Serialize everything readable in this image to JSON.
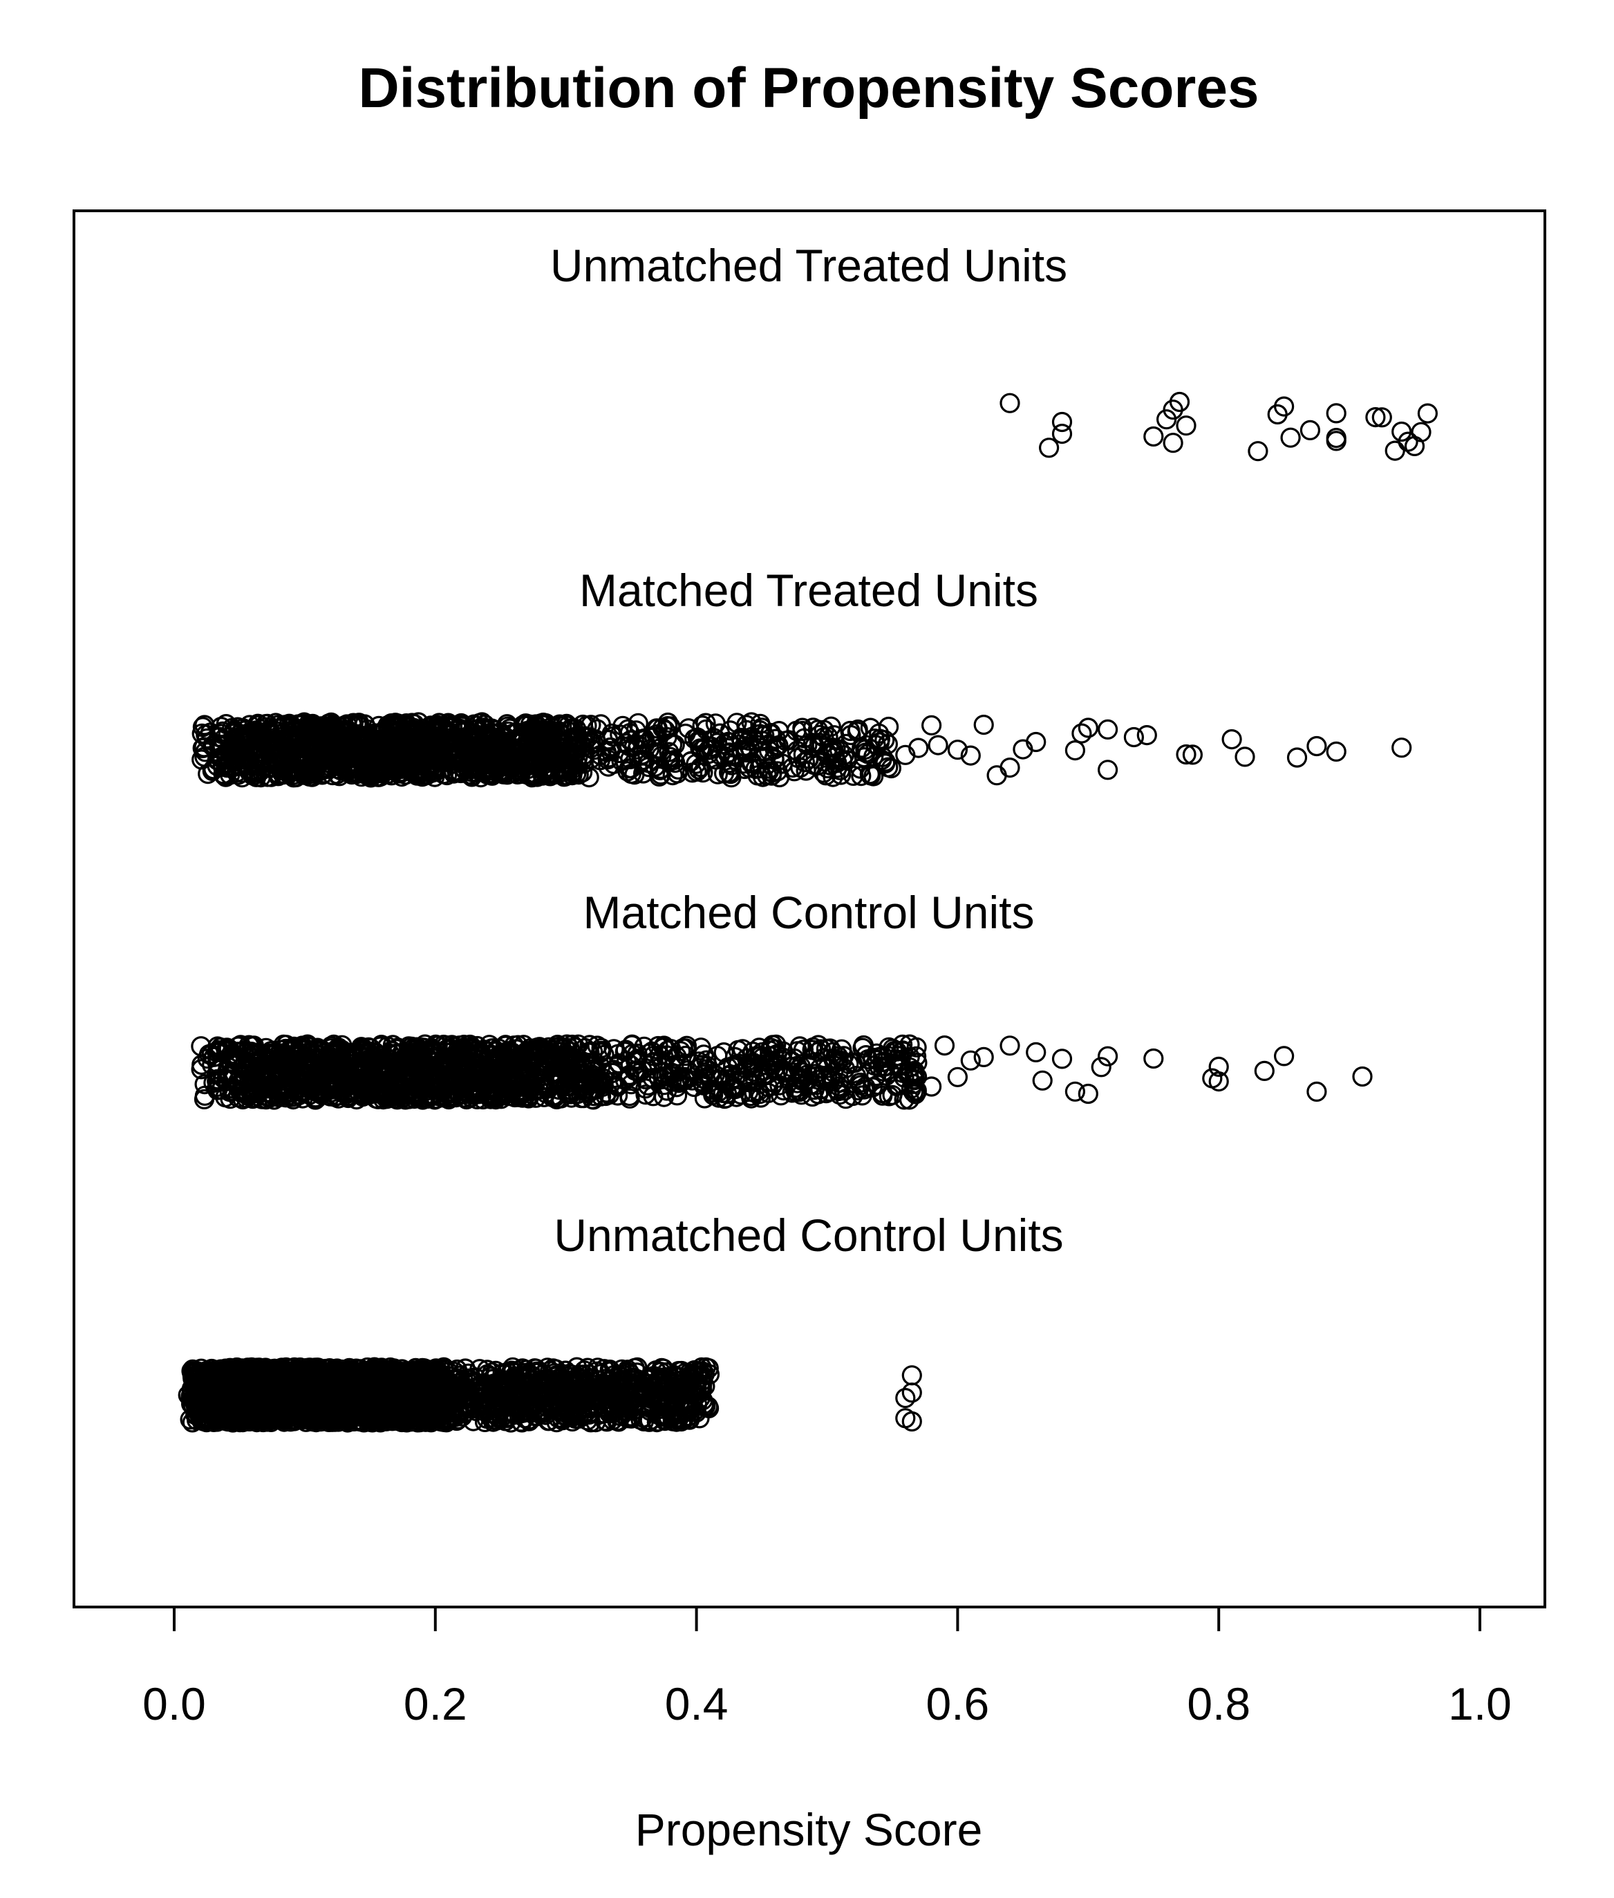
{
  "chart_data": {
    "type": "scatter",
    "title": "Distribution of Propensity Scores",
    "xlabel": "Propensity Score",
    "ylabel": "",
    "xlim": [
      -0.065,
      1.05
    ],
    "x_ticks": [
      0.0,
      0.2,
      0.4,
      0.6,
      0.8,
      1.0
    ],
    "x_tick_labels": [
      "0.0",
      "0.2",
      "0.4",
      "0.6",
      "0.8",
      "1.0"
    ],
    "grid": false,
    "legend": "none",
    "marker": "open-circle",
    "series": [
      {
        "name": "Unmatched Treated Units",
        "x": [
          0.64,
          0.67,
          0.68,
          0.68,
          0.75,
          0.76,
          0.765,
          0.77,
          0.765,
          0.775,
          0.83,
          0.845,
          0.85,
          0.855,
          0.87,
          0.89,
          0.89,
          0.89,
          0.92,
          0.925,
          0.935,
          0.94,
          0.945,
          0.95,
          0.955,
          0.96
        ]
      },
      {
        "name": "Matched Treated Units",
        "distribution": {
          "dense_range": [
            0.02,
            0.55
          ],
          "peak": 0.18,
          "approx_points": 1500
        },
        "x": [
          0.56,
          0.57,
          0.58,
          0.585,
          0.6,
          0.61,
          0.62,
          0.63,
          0.64,
          0.65,
          0.66,
          0.69,
          0.695,
          0.7,
          0.715,
          0.715,
          0.735,
          0.745,
          0.775,
          0.78,
          0.81,
          0.82,
          0.86,
          0.875,
          0.89,
          0.94
        ]
      },
      {
        "name": "Matched Control Units",
        "distribution": {
          "dense_range": [
            0.02,
            0.57
          ],
          "peak": 0.2,
          "approx_points": 1500
        },
        "x": [
          0.58,
          0.59,
          0.6,
          0.61,
          0.62,
          0.64,
          0.66,
          0.665,
          0.68,
          0.69,
          0.7,
          0.71,
          0.715,
          0.75,
          0.795,
          0.8,
          0.8,
          0.835,
          0.85,
          0.875,
          0.91
        ]
      },
      {
        "name": "Unmatched Control Units",
        "distribution": {
          "dense_range": [
            0.01,
            0.41
          ],
          "peak": 0.1,
          "approx_points": 3000
        },
        "x": [
          0.56,
          0.56,
          0.565,
          0.565,
          0.565
        ]
      }
    ]
  }
}
